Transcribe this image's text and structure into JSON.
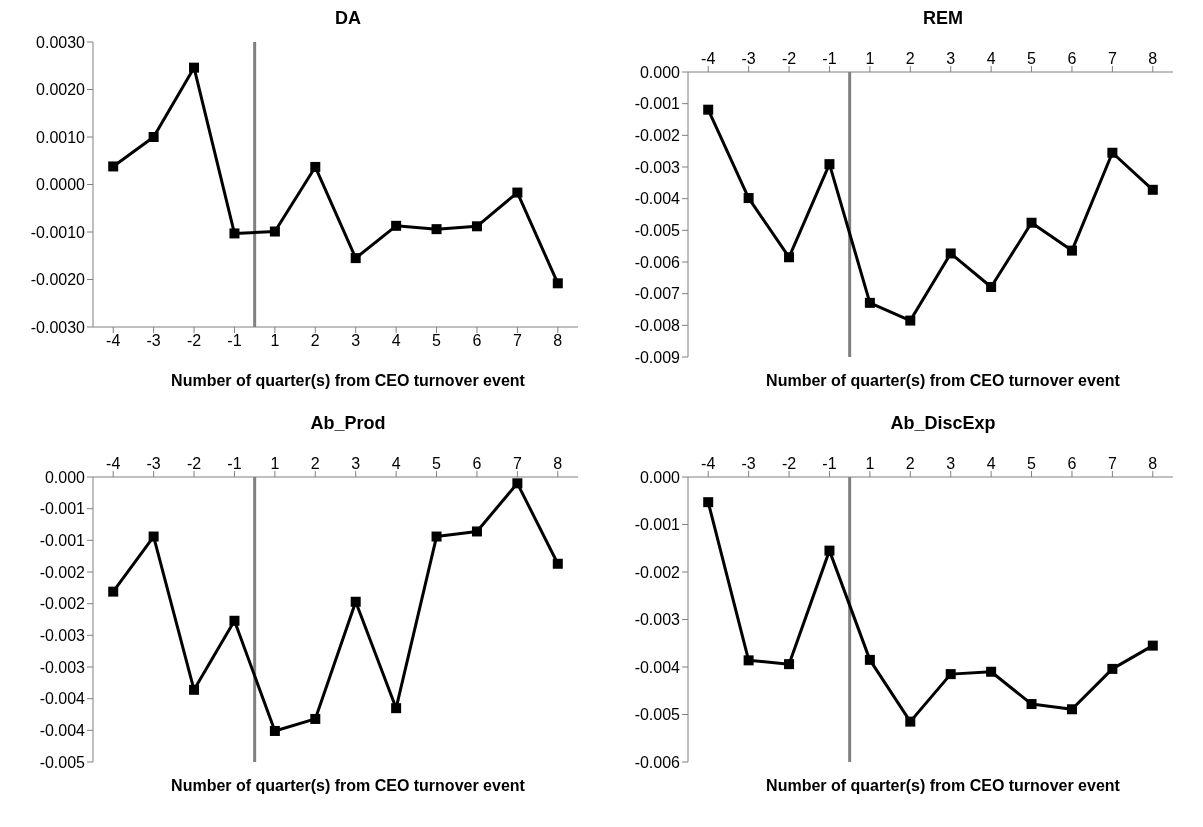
{
  "chart_data": [
    {
      "type": "line",
      "title": "DA",
      "xlabel": "Number of quarter(s) from CEO turnover event",
      "categories": [
        "-4",
        "-3",
        "-2",
        "-1",
        "1",
        "2",
        "3",
        "4",
        "5",
        "6",
        "7",
        "8"
      ],
      "series": [
        {
          "color": "#000000",
          "values": [
            0.00038,
            0.001,
            0.00246,
            -0.00103,
            -0.00099,
            0.00037,
            -0.00155,
            -0.00087,
            -0.00094,
            -0.00088,
            -0.00017,
            -0.00208
          ]
        }
      ],
      "ylim": [
        -0.003,
        0.003
      ],
      "yticks": [
        {
          "value": -0.003,
          "label": "-0.0030"
        },
        {
          "value": -0.002,
          "label": "-0.0020"
        },
        {
          "value": -0.001,
          "label": "-0.0010"
        },
        {
          "value": 0,
          "label": "0.0000"
        },
        {
          "value": 0.001,
          "label": "0.0010"
        },
        {
          "value": 0.002,
          "label": "0.0020"
        },
        {
          "value": 0.003,
          "label": "0.0030"
        }
      ],
      "marker": "square",
      "grid": false
    },
    {
      "type": "line",
      "title": "REM",
      "xlabel": "Number of quarter(s) from CEO turnover event",
      "categories": [
        "-4",
        "-3",
        "-2",
        "-1",
        "1",
        "2",
        "3",
        "4",
        "5",
        "6",
        "7",
        "8"
      ],
      "series": [
        {
          "color": "#000000",
          "values": [
            -0.00119,
            -0.00398,
            -0.00585,
            -0.00291,
            -0.00729,
            -0.00785,
            -0.00573,
            -0.00679,
            -0.00476,
            -0.00564,
            -0.00255,
            -0.00372
          ]
        }
      ],
      "ylim": [
        -0.009,
        0
      ],
      "yticks": [
        {
          "value": -0.009,
          "label": "-0.009"
        },
        {
          "value": -0.008,
          "label": "-0.008"
        },
        {
          "value": -0.007,
          "label": "-0.007"
        },
        {
          "value": -0.006,
          "label": "-0.006"
        },
        {
          "value": -0.005,
          "label": "-0.005"
        },
        {
          "value": -0.004,
          "label": "-0.004"
        },
        {
          "value": -0.003,
          "label": "-0.003"
        },
        {
          "value": -0.002,
          "label": "-0.002"
        },
        {
          "value": -0.001,
          "label": "-0.001"
        },
        {
          "value": 0,
          "label": "0.000"
        }
      ],
      "marker": "square",
      "grid": false
    },
    {
      "type": "line",
      "title": "Ab_Prod",
      "xlabel": "Number of quarter(s) from CEO turnover event",
      "categories": [
        "-4",
        "-3",
        "-2",
        "-1",
        "1",
        "2",
        "3",
        "4",
        "5",
        "6",
        "7",
        "8"
      ],
      "series": [
        {
          "color": "#000000",
          "values": [
            -0.00181,
            -0.00094,
            -0.00336,
            -0.00227,
            -0.00401,
            -0.00382,
            -0.00197,
            -0.00365,
            -0.00094,
            -0.00086,
            -0.0001,
            -0.00137
          ]
        }
      ],
      "ylim": [
        -0.0045,
        0
      ],
      "yticks": [
        {
          "value": -0.0045,
          "label": "-0.005"
        },
        {
          "value": -0.004,
          "label": "-0.004"
        },
        {
          "value": -0.0035,
          "label": "-0.004"
        },
        {
          "value": -0.003,
          "label": "-0.003"
        },
        {
          "value": -0.0025,
          "label": "-0.003"
        },
        {
          "value": -0.002,
          "label": "-0.002"
        },
        {
          "value": -0.0015,
          "label": "-0.002"
        },
        {
          "value": -0.001,
          "label": "-0.001"
        },
        {
          "value": -0.0005,
          "label": "-0.001"
        },
        {
          "value": 0,
          "label": "0.000"
        }
      ],
      "marker": "square",
      "grid": false
    },
    {
      "type": "line",
      "title": "Ab_DiscExp",
      "xlabel": "Number of quarter(s) from CEO turnover event",
      "categories": [
        "-4",
        "-3",
        "-2",
        "-1",
        "1",
        "2",
        "3",
        "4",
        "5",
        "6",
        "7",
        "8"
      ],
      "series": [
        {
          "color": "#000000",
          "values": [
            -0.00053,
            -0.00386,
            -0.00394,
            -0.00155,
            -0.00385,
            -0.00515,
            -0.00415,
            -0.0041,
            -0.00478,
            -0.00489,
            -0.00404,
            -0.00355
          ]
        }
      ],
      "ylim": [
        -0.006,
        0
      ],
      "yticks": [
        {
          "value": -0.006,
          "label": "-0.006"
        },
        {
          "value": -0.005,
          "label": "-0.005"
        },
        {
          "value": -0.004,
          "label": "-0.004"
        },
        {
          "value": -0.003,
          "label": "-0.003"
        },
        {
          "value": -0.002,
          "label": "-0.002"
        },
        {
          "value": -0.001,
          "label": "-0.001"
        },
        {
          "value": 0,
          "label": "0.000"
        }
      ],
      "marker": "square",
      "grid": false
    }
  ]
}
